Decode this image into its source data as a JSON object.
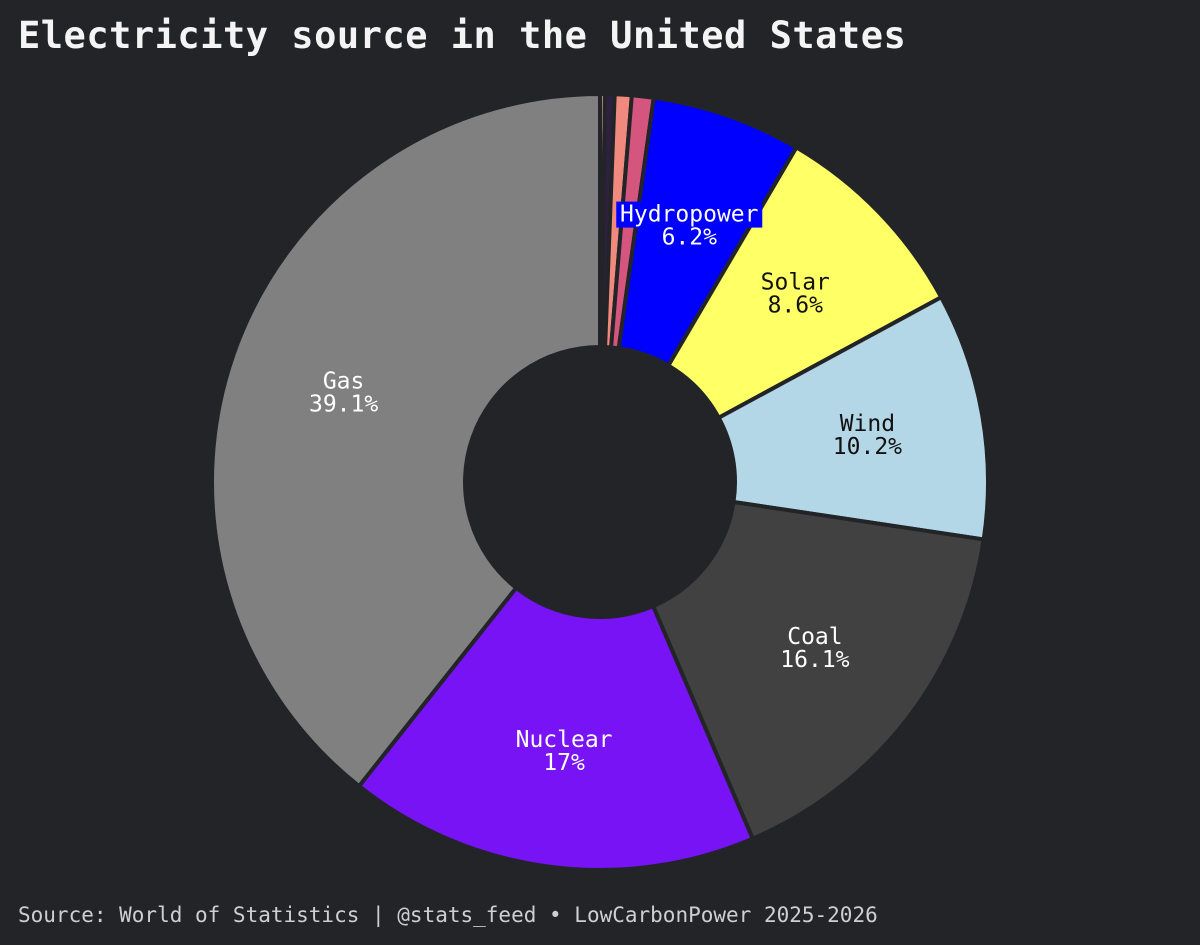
{
  "title": "Electricity source in the United States",
  "footer": "Source: World of Statistics | @stats_feed • LowCarbonPower 2025-2026",
  "chart_data": {
    "type": "pie",
    "donut": true,
    "start": "top",
    "direction": "clockwise",
    "title": "Electricity source in the United States",
    "slices": [
      {
        "name": "",
        "value": 0.2,
        "color": "#e8a6a0",
        "show_label": false
      },
      {
        "name": "",
        "value": 0.4,
        "color": "#2e2140",
        "show_label": false
      },
      {
        "name": "",
        "value": 0.7,
        "color": "#f08a7e",
        "show_label": false
      },
      {
        "name": "",
        "value": 0.9,
        "color": "#d4567e",
        "show_label": false
      },
      {
        "name": "Hydropower",
        "label": "6.2%",
        "value": 6.2,
        "color": "#0000ff",
        "text_color": "#ffffff",
        "label_bg": "#0000ff",
        "show_label": true
      },
      {
        "name": "Solar",
        "label": "8.6%",
        "value": 8.6,
        "color": "#ffff66",
        "text_color": "#111111",
        "show_label": true
      },
      {
        "name": "Wind",
        "label": "10.2%",
        "value": 10.2,
        "color": "#b3d7e6",
        "text_color": "#111111",
        "show_label": true
      },
      {
        "name": "Coal",
        "label": "16.1%",
        "value": 16.1,
        "color": "#414141",
        "text_color": "#ffffff",
        "show_label": true
      },
      {
        "name": "Nuclear",
        "label": "17%",
        "value": 17.0,
        "color": "#7713f5",
        "text_color": "#ffffff",
        "show_label": true
      },
      {
        "name": "Gas",
        "label": "39.1%",
        "value": 39.1,
        "color": "#808080",
        "text_color": "#ffffff",
        "show_label": true
      }
    ]
  }
}
